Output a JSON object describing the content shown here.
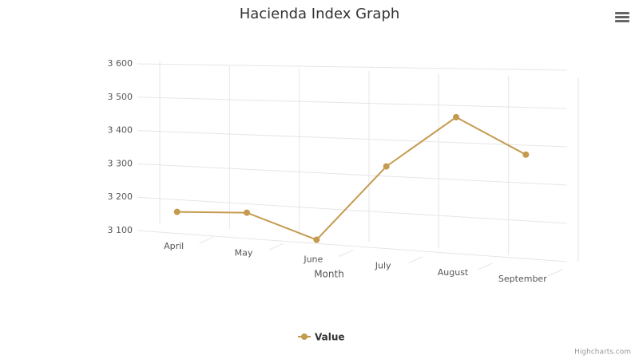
{
  "chart_data": {
    "type": "line",
    "title": "Hacienda Index Graph",
    "x_label": "Month",
    "categories": [
      "April",
      "May",
      "June",
      "July",
      "August",
      "September"
    ],
    "series": [
      {
        "name": "Value",
        "color": "#c49a4e",
        "values": [
          3165,
          3180,
          3120,
          3340,
          3485,
          3395
        ]
      }
    ],
    "ylim": [
      3100,
      3600
    ],
    "yticks": [
      {
        "value": 3100,
        "label": "3 100"
      },
      {
        "value": 3200,
        "label": "3 200"
      },
      {
        "value": 3300,
        "label": "3 300"
      },
      {
        "value": 3400,
        "label": "3 400"
      },
      {
        "value": 3500,
        "label": "3 500"
      },
      {
        "value": 3600,
        "label": "3 600"
      }
    ],
    "grid": true,
    "legend": "bottom",
    "credits": "Highcharts.com"
  }
}
